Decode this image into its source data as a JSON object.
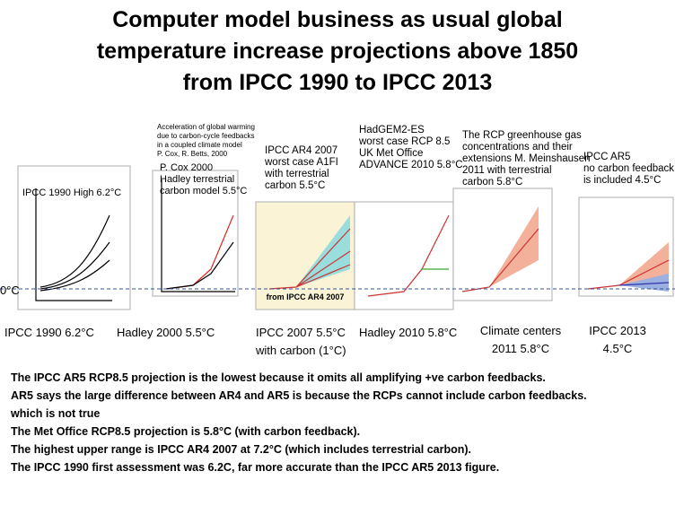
{
  "title_lines": [
    "Computer model business as usual  global",
    "temperature increase projections above 1850",
    "from IPCC 1990 to IPCC 2013"
  ],
  "zero_label": "0°C",
  "panels": [
    {
      "caption_lines": [
        "IPCC 1990 High 6.2°C"
      ],
      "label_lines": [
        "IPCC 1990  6.2°C"
      ]
    },
    {
      "header_lines": [
        "Acceleration of global warming",
        "due to carbon-cycle feedbacks",
        "in a coupled climate model",
        "P. Cox, R. Betts, 2000"
      ],
      "caption_lines": [
        "P. Cox 2000",
        "Hadley terrestrial",
        "carbon model 5.5°C"
      ],
      "label_lines": [
        "Hadley 2000 5.5°C"
      ]
    },
    {
      "caption_lines": [
        "IPCC AR4 2007",
        "worst case A1FI",
        "with terrestrial",
        "carbon 5.5°C"
      ],
      "inner_label": "from IPCC AR4 2007",
      "label_lines": [
        "IPCC 2007  5.5°C",
        "with carbon (1°C)"
      ]
    },
    {
      "caption_lines": [
        "HadGEM2-ES",
        "worst case RCP 8.5",
        "UK Met Office",
        "ADVANCE 2010 5.8°C"
      ],
      "label_lines": [
        "Hadley 2010 5.8°C"
      ]
    },
    {
      "caption_lines": [
        "The RCP greenhouse gas",
        "concentrations and their",
        "extensions M. Meinshausen",
        "2011 with terrestrial",
        "carbon 5.8°C"
      ],
      "label_lines": [
        "Climate centers",
        "2011 5.8°C"
      ]
    },
    {
      "caption_lines": [
        "IPCC AR5",
        "no carbon feedback",
        "is included 4.5°C"
      ],
      "label_lines": [
        "IPCC 2013",
        "4.5°C"
      ]
    }
  ],
  "notes": [
    "The IPCC AR5 RCP8.5  projection is the lowest because it omits all amplifying +ve carbon feedbacks.",
    "AR5 says the large difference between AR4 and AR5 is because  the RCPs cannot include carbon feedbacks.",
    "which is not true",
    "The Met Office RCP8.5 projection is 5.8°C (with carbon feedback).",
    "The highest upper range is IPCC AR4 2007 at 7.2°C (which includes terrestrial carbon).",
    "The IPCC 1990 first assessment was 6.2C, far more accurate than the IPCC AR5 2013 figure."
  ]
}
